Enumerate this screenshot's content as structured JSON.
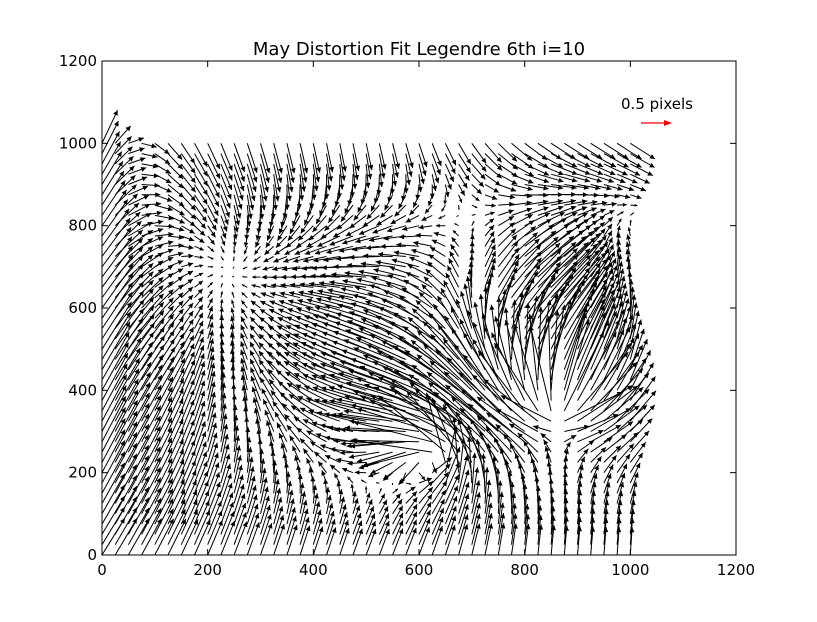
{
  "chart_data": {
    "type": "quiver",
    "title": "May Distortion Fit Legendre 6th i=10",
    "xlabel": "",
    "ylabel": "",
    "xlim": [
      0,
      1200
    ],
    "ylim": [
      0,
      1200
    ],
    "xticks": [
      "0",
      "200",
      "400",
      "600",
      "800",
      "1000",
      "1200"
    ],
    "yticks": [
      "0",
      "200",
      "400",
      "600",
      "800",
      "1000",
      "1200"
    ],
    "grid": false,
    "arrow_color": "#000000",
    "key": {
      "label": "0.5 pixels",
      "length_px_units": 0.5,
      "color": "#ff0000",
      "placement": "top-right"
    },
    "field": {
      "x_range": [
        0,
        1000
      ],
      "y_range": [
        0,
        1000
      ],
      "step": 25,
      "features": [
        {
          "kind": "converging-node",
          "center": [
            250,
            620
          ]
        },
        {
          "kind": "vortex",
          "center": [
            630,
            230
          ]
        },
        {
          "kind": "source",
          "center": [
            860,
            330
          ]
        },
        {
          "kind": "shear-band",
          "center": [
            780,
            560
          ]
        }
      ]
    }
  }
}
